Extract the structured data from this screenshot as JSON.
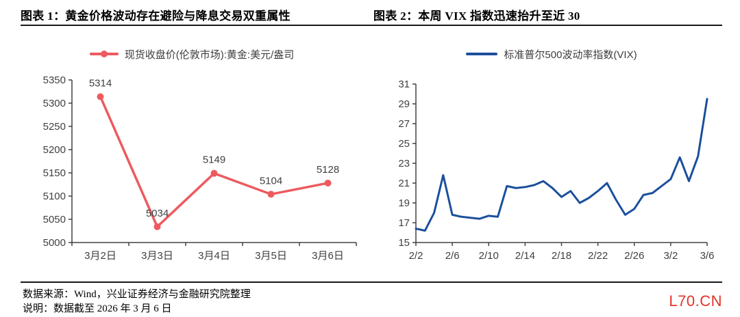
{
  "page": {
    "watermark": "L70.CN"
  },
  "panel_left": {
    "title": "图表 1：黄金价格波动存在避险与降息交易双重属性",
    "legend": "现货收盘价(伦敦市场):黄金:美元/盎司"
  },
  "panel_right": {
    "title": "图表 2：本周 VIX 指数迅速抬升至近 30",
    "legend": "标准普尔500波动率指数(VIX)"
  },
  "footer": {
    "source": "数据来源：Wind，兴业证券经济与金融研究院整理",
    "note": "说明：数据截至 2026 年 3 月 6 日"
  },
  "chart_data": [
    {
      "id": "gold",
      "type": "line",
      "title": "现货收盘价(伦敦市场):黄金:美元/盎司",
      "categories": [
        "3月2日",
        "3月3日",
        "3月4日",
        "3月5日",
        "3月6日"
      ],
      "values": [
        5314,
        5034,
        5149,
        5104,
        5128
      ],
      "data_labels": [
        5314,
        5034,
        5149,
        5104,
        5128
      ],
      "ylim": [
        5000,
        5350
      ],
      "ytick_step": 50,
      "line_color": "#ed5a5f",
      "markers": true,
      "show_data_labels": true,
      "grid": false,
      "legend_position": "top",
      "x_tick_mode": "between"
    },
    {
      "id": "vix",
      "type": "line",
      "title": "标准普尔500波动率指数(VIX)",
      "x": [
        "2/2",
        "2/3",
        "2/4",
        "2/5",
        "2/6",
        "2/7",
        "2/8",
        "2/9",
        "2/10",
        "2/11",
        "2/12",
        "2/13",
        "2/14",
        "2/15",
        "2/16",
        "2/17",
        "2/18",
        "2/19",
        "2/20",
        "2/21",
        "2/22",
        "2/23",
        "2/24",
        "2/25",
        "2/26",
        "2/27",
        "2/28",
        "3/1",
        "3/2",
        "3/3",
        "3/4",
        "3/5",
        "3/6"
      ],
      "values": [
        16.4,
        16.2,
        18.0,
        21.8,
        17.8,
        17.6,
        17.5,
        17.4,
        17.7,
        17.6,
        20.7,
        20.5,
        20.6,
        20.8,
        21.2,
        20.5,
        19.6,
        20.2,
        19.0,
        19.5,
        20.2,
        21.0,
        19.3,
        17.8,
        18.4,
        19.8,
        20.0,
        20.7,
        21.4,
        23.6,
        21.2,
        23.7,
        29.5
      ],
      "x_tick_labels": [
        "2/2",
        "2/6",
        "2/10",
        "2/14",
        "2/18",
        "2/22",
        "2/26",
        "3/2",
        "3/6"
      ],
      "x_tick_every": 4,
      "ylim": [
        15,
        31
      ],
      "ytick_step": 2,
      "line_color": "#1b4f9c",
      "markers": false,
      "show_data_labels": false,
      "grid": false,
      "legend_position": "top",
      "x_tick_mode": "on"
    }
  ]
}
